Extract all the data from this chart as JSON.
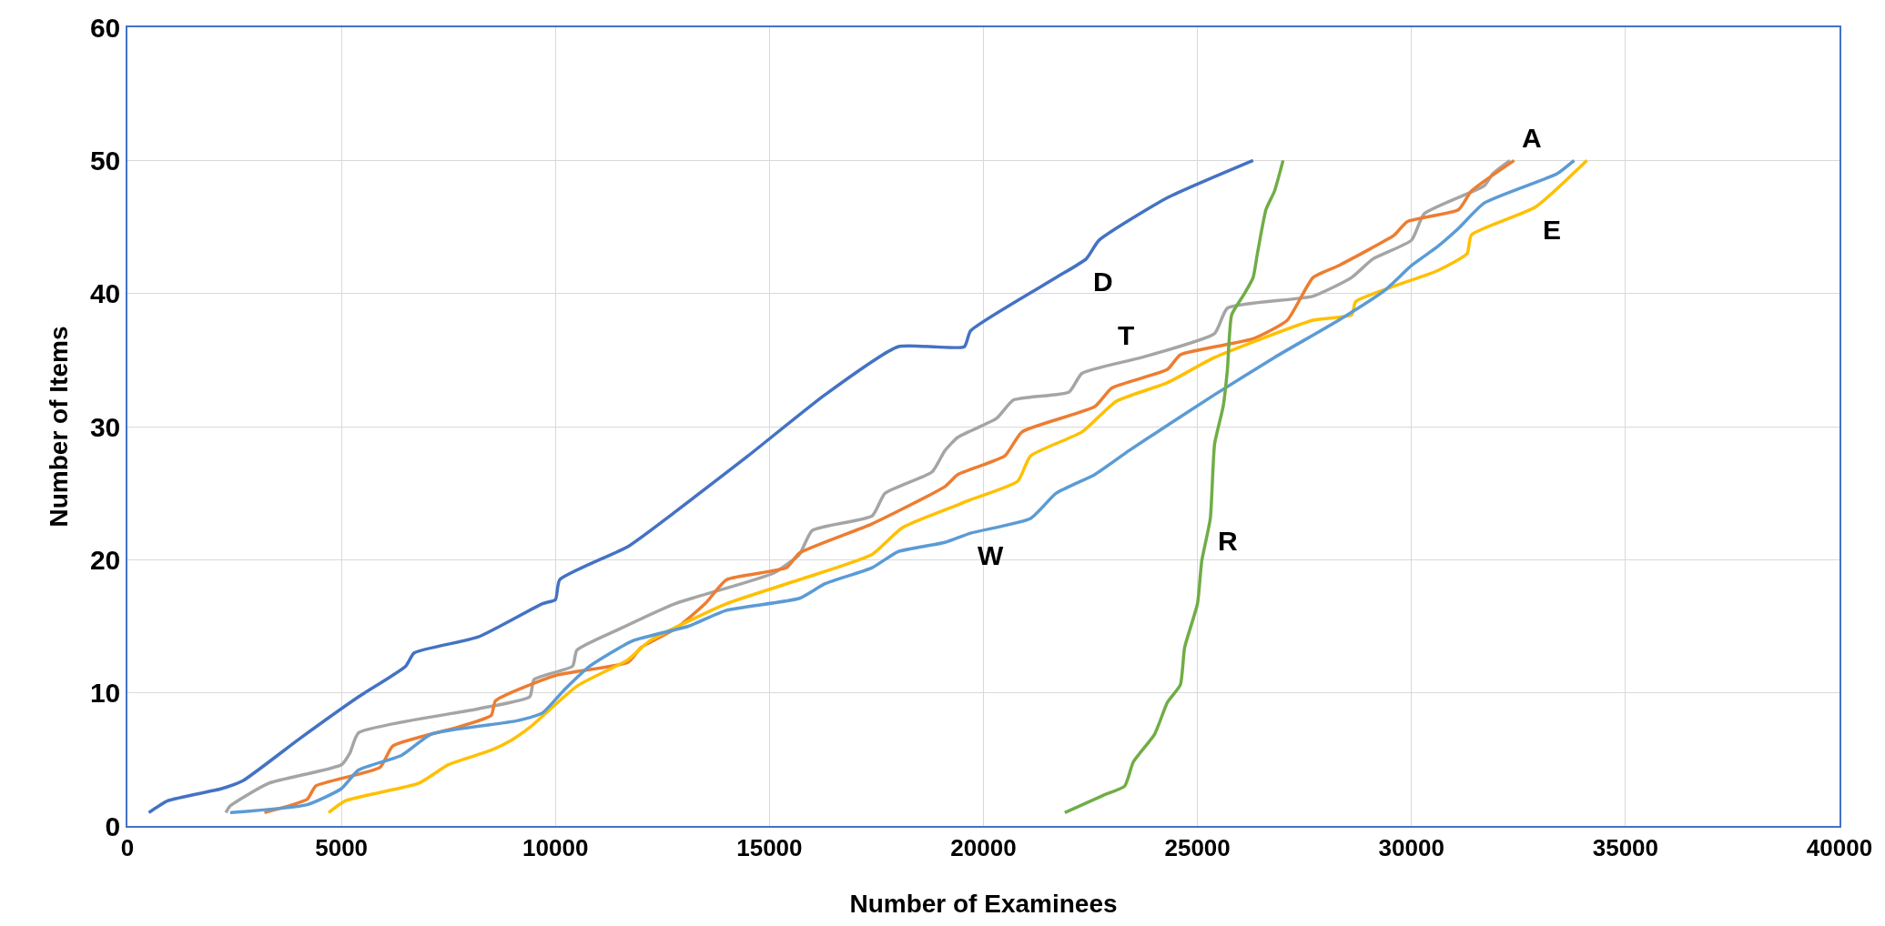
{
  "chart_data": {
    "type": "line",
    "xlabel": "Number of Examinees",
    "ylabel": "Number of Items",
    "xlim": [
      0,
      40000
    ],
    "xticks": [
      0,
      5000,
      10000,
      15000,
      20000,
      25000,
      30000,
      35000,
      40000
    ],
    "ylim": [
      0,
      60
    ],
    "yticks": [
      0,
      10,
      20,
      30,
      40,
      50,
      60
    ],
    "grid": true,
    "marker": "none",
    "line_style": "solid",
    "series": [
      {
        "color": "#4472c4",
        "x": [
          500,
          950,
          2200,
          2700,
          4000,
          5400,
          6500,
          6700,
          8200,
          9700,
          10000,
          10100,
          11700,
          12800,
          14500,
          16300,
          18000,
          19550,
          19700,
          21700,
          22400,
          22700,
          24300,
          26300
        ],
        "values": [
          1,
          1.9,
          2.8,
          3.4,
          6.5,
          9.7,
          12,
          13,
          14.2,
          16.7,
          17,
          18.5,
          21,
          23.6,
          27.8,
          32.4,
          36,
          36,
          37.2,
          41.2,
          42.6,
          44,
          47.2,
          50
        ]
      },
      {
        "color": "#a5a5a5",
        "x": [
          2300,
          2400,
          3300,
          5000,
          5200,
          5400,
          8200,
          9400,
          9500,
          10400,
          10500,
          11500,
          12800,
          15100,
          15700,
          16000,
          17400,
          17700,
          18800,
          19100,
          19400,
          20300,
          20700,
          22000,
          22300,
          23700,
          25400,
          25700,
          27700,
          28600,
          29100,
          30000,
          30300,
          31700,
          31900,
          32300
        ],
        "values": [
          1,
          1.5,
          3.2,
          4.6,
          5.5,
          7,
          8.8,
          9.7,
          11,
          12,
          13.2,
          14.8,
          16.7,
          19,
          20.4,
          22.2,
          23.3,
          25,
          26.6,
          28.2,
          29.2,
          30.6,
          32,
          32.6,
          34,
          35.2,
          37,
          38.9,
          39.8,
          41.2,
          42.6,
          44,
          46,
          48.1,
          49,
          50
        ]
      },
      {
        "color": "#ed7d31",
        "x": [
          3200,
          4200,
          4400,
          5900,
          6200,
          7700,
          8500,
          8600,
          10000,
          11700,
          12000,
          12800,
          13500,
          14000,
          15400,
          15700,
          17400,
          19100,
          19400,
          20500,
          20900,
          22600,
          23000,
          24300,
          24600,
          26300,
          27100,
          27700,
          28300,
          29600,
          29900,
          31100,
          31400,
          32400
        ],
        "values": [
          1,
          2,
          3,
          4.4,
          6,
          7.4,
          8.3,
          9.4,
          11.3,
          12.3,
          13.4,
          14.8,
          16.7,
          18.5,
          19.4,
          20.5,
          22.7,
          25.5,
          26.4,
          27.8,
          29.6,
          31.5,
          32.9,
          34.3,
          35.4,
          36.6,
          38,
          41.2,
          42.1,
          44.4,
          45.4,
          46.3,
          47.7,
          50
        ]
      },
      {
        "color": "#ffc000",
        "x": [
          4700,
          5100,
          6800,
          7500,
          8500,
          9000,
          9400,
          10500,
          11700,
          12200,
          14000,
          15700,
          17400,
          18100,
          19700,
          20800,
          21100,
          22300,
          23100,
          24300,
          25400,
          27700,
          28600,
          28700,
          30600,
          31300,
          31400,
          32900,
          34100
        ],
        "values": [
          1,
          1.9,
          3.2,
          4.6,
          5.7,
          6.5,
          7.4,
          10.5,
          12.5,
          13.9,
          16.7,
          18.5,
          20.4,
          22.4,
          24.5,
          25.9,
          27.8,
          29.6,
          31.9,
          33.3,
          35.2,
          38,
          38.4,
          39.4,
          41.7,
          43,
          44.4,
          46.5,
          50
        ]
      },
      {
        "color": "#5b9bd5",
        "x": [
          2400,
          4200,
          5000,
          5400,
          6400,
          7100,
          9100,
          9700,
          10200,
          10800,
          11800,
          13100,
          14000,
          15700,
          16300,
          17400,
          18000,
          19100,
          19700,
          21100,
          21700,
          22600,
          23400,
          24300,
          25400,
          26800,
          28300,
          29400,
          30000,
          30600,
          31100,
          31700,
          33400,
          33800
        ],
        "values": [
          1,
          1.6,
          2.8,
          4.2,
          5.3,
          6.9,
          7.9,
          8.5,
          10.2,
          12,
          13.9,
          15,
          16.2,
          17.1,
          18.2,
          19.4,
          20.6,
          21.3,
          22,
          23.1,
          25,
          26.4,
          28.2,
          30.1,
          32.4,
          35.2,
          38,
          40.3,
          42.1,
          43.5,
          44.9,
          46.8,
          49,
          50
        ]
      },
      {
        "color": "#70ad47",
        "x": [
          21900,
          22800,
          23300,
          23500,
          24000,
          24300,
          24600,
          24700,
          25000,
          25100,
          25300,
          25400,
          25600,
          25700,
          25800,
          26100,
          26300,
          26400,
          26600,
          26800,
          27000
        ],
        "values": [
          1,
          2.3,
          3,
          4.8,
          6.9,
          9.3,
          10.6,
          13.4,
          16.7,
          19.9,
          23.1,
          28.7,
          31.5,
          34.3,
          38.4,
          40,
          41.2,
          43,
          46.3,
          47.7,
          50
        ]
      }
    ],
    "annotations": [
      {
        "text": "A",
        "x": 32400,
        "y": 50
      },
      {
        "text": "D",
        "x": 22400,
        "y": 42.6
      },
      {
        "text": "E",
        "x": 32900,
        "y": 46.5
      },
      {
        "text": "T",
        "x": 23700,
        "y": 35.2
      },
      {
        "text": "W",
        "x": 19700,
        "y": 22
      },
      {
        "text": "R",
        "x": 25300,
        "y": 23.1
      }
    ]
  }
}
